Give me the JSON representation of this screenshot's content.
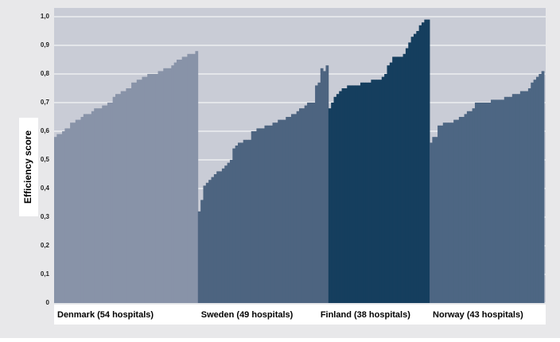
{
  "chart_data": {
    "type": "bar",
    "y_label": "Efficiency score",
    "ylim": [
      0,
      1
    ],
    "yticks": [
      0,
      {
        "value": 0.1,
        "label": "0,1"
      },
      {
        "value": 0.2,
        "label": "0,2"
      },
      {
        "value": 0.3,
        "label": "0,3"
      },
      {
        "value": 0.4,
        "label": "0,4"
      },
      {
        "value": 0.5,
        "label": "0,5"
      },
      {
        "value": 0.6,
        "label": "0,6"
      },
      {
        "value": 0.7,
        "label": "0,7"
      },
      {
        "value": 0.8,
        "label": "0,8"
      },
      {
        "value": 0.9,
        "label": "0,9"
      },
      {
        "value": 1.0,
        "label": "1,0"
      }
    ],
    "grid": true,
    "series": [
      {
        "name": "Denmark (54 hospitals)",
        "color": "#8893a8",
        "values": [
          0.58,
          0.59,
          0.59,
          0.6,
          0.61,
          0.61,
          0.63,
          0.63,
          0.64,
          0.64,
          0.65,
          0.66,
          0.66,
          0.66,
          0.67,
          0.68,
          0.68,
          0.68,
          0.69,
          0.69,
          0.7,
          0.7,
          0.72,
          0.73,
          0.73,
          0.74,
          0.74,
          0.75,
          0.75,
          0.77,
          0.77,
          0.78,
          0.78,
          0.79,
          0.79,
          0.8,
          0.8,
          0.8,
          0.8,
          0.81,
          0.81,
          0.82,
          0.82,
          0.82,
          0.83,
          0.84,
          0.85,
          0.85,
          0.86,
          0.86,
          0.87,
          0.87,
          0.87,
          0.88
        ]
      },
      {
        "name": "Sweden (49 hospitals)",
        "color": "#4d6480",
        "values": [
          0.32,
          0.36,
          0.41,
          0.42,
          0.43,
          0.44,
          0.45,
          0.46,
          0.46,
          0.47,
          0.48,
          0.49,
          0.5,
          0.54,
          0.55,
          0.56,
          0.56,
          0.57,
          0.57,
          0.57,
          0.6,
          0.6,
          0.61,
          0.61,
          0.61,
          0.62,
          0.62,
          0.62,
          0.63,
          0.63,
          0.64,
          0.64,
          0.64,
          0.65,
          0.65,
          0.66,
          0.66,
          0.67,
          0.68,
          0.68,
          0.69,
          0.7,
          0.7,
          0.7,
          0.76,
          0.77,
          0.82,
          0.81,
          0.83
        ]
      },
      {
        "name": "Finland (38 hospitals)",
        "color": "#153e5e",
        "values": [
          0.68,
          0.7,
          0.72,
          0.73,
          0.74,
          0.75,
          0.75,
          0.76,
          0.76,
          0.76,
          0.76,
          0.76,
          0.77,
          0.77,
          0.77,
          0.77,
          0.78,
          0.78,
          0.78,
          0.78,
          0.79,
          0.8,
          0.83,
          0.84,
          0.86,
          0.86,
          0.86,
          0.86,
          0.87,
          0.89,
          0.91,
          0.93,
          0.94,
          0.95,
          0.97,
          0.98,
          0.99,
          0.99
        ]
      },
      {
        "name": "Norway (43 hospitals)",
        "color": "#4d6683",
        "values": [
          0.56,
          0.58,
          0.58,
          0.62,
          0.62,
          0.63,
          0.63,
          0.63,
          0.63,
          0.64,
          0.64,
          0.65,
          0.65,
          0.66,
          0.67,
          0.67,
          0.68,
          0.7,
          0.7,
          0.7,
          0.7,
          0.7,
          0.7,
          0.71,
          0.71,
          0.71,
          0.71,
          0.71,
          0.72,
          0.72,
          0.72,
          0.73,
          0.73,
          0.73,
          0.74,
          0.74,
          0.74,
          0.75,
          0.77,
          0.78,
          0.79,
          0.8,
          0.81
        ]
      }
    ]
  }
}
